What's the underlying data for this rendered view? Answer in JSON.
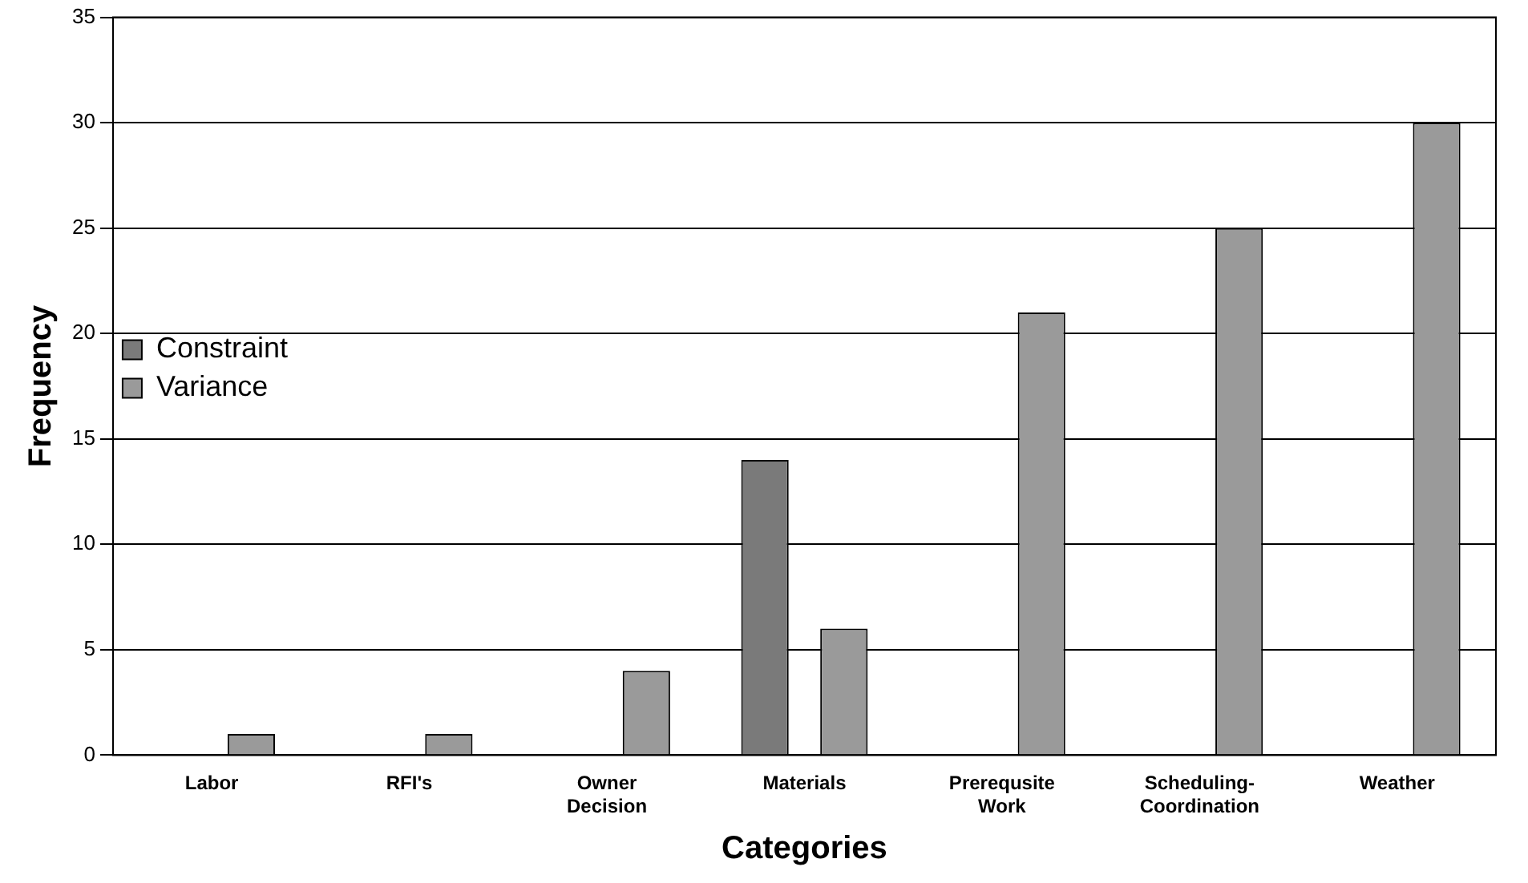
{
  "chart_data": {
    "type": "bar",
    "xlabel": "Categories",
    "ylabel": "Frequency",
    "categories": [
      "Labor",
      "RFI's",
      "Owner Decision",
      "Materials",
      "Prerequsite Work",
      "Scheduling-Coordination",
      "Weather"
    ],
    "series": [
      {
        "name": "Constraint",
        "color": "#7a7a7a",
        "values": [
          0,
          0,
          0,
          14,
          0,
          0,
          0
        ]
      },
      {
        "name": "Variance",
        "color": "#9a9a9a",
        "values": [
          1,
          1,
          4,
          6,
          21,
          25,
          30
        ]
      }
    ],
    "ylim": [
      0,
      35
    ],
    "yticks": [
      0,
      5,
      10,
      15,
      20,
      25,
      30,
      35
    ],
    "grid": "y",
    "legend": "top"
  }
}
